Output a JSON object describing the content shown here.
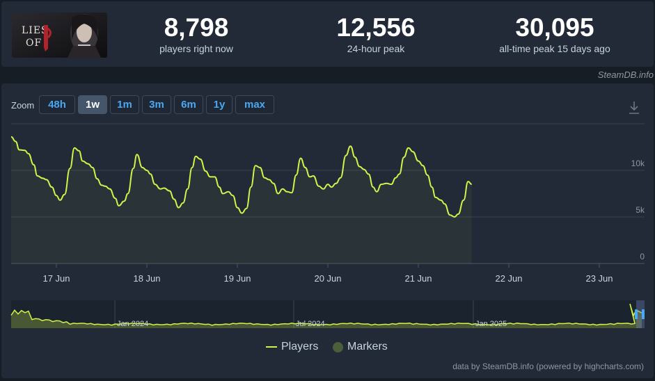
{
  "stats": [
    {
      "value": "8,798",
      "label": "players right now"
    },
    {
      "value": "12,556",
      "label": "24-hour peak"
    },
    {
      "value": "30,095",
      "label": "all-time peak 15 days ago"
    }
  ],
  "game": {
    "logo_text_1": "LIES",
    "logo_text_2": "OF"
  },
  "watermark": "SteamDB.info",
  "zoom": {
    "label": "Zoom",
    "options": [
      "48h",
      "1w",
      "1m",
      "3m",
      "6m",
      "1y",
      "max"
    ],
    "selected": "1w"
  },
  "legend": {
    "players": "Players",
    "markers": "Markers"
  },
  "credits": "data by SteamDB.info (powered by highcharts.com)",
  "colors": {
    "series": "#d4f34a",
    "background": "#171d25",
    "panel": "#212a36",
    "accent": "#4aa8f0"
  },
  "chart_data": {
    "type": "line",
    "series": [
      {
        "name": "Players",
        "x_day_offset": [],
        "values": []
      }
    ],
    "points": [
      [
        16.5,
        13600
      ],
      [
        16.55,
        13100
      ],
      [
        16.59,
        12200
      ],
      [
        16.65,
        12150
      ],
      [
        16.69,
        11800
      ],
      [
        16.75,
        10600
      ],
      [
        16.79,
        9400
      ],
      [
        16.85,
        9150
      ],
      [
        16.89,
        9000
      ],
      [
        16.95,
        8200
      ],
      [
        17.0,
        7300
      ],
      [
        17.04,
        6800
      ],
      [
        17.09,
        7400
      ],
      [
        17.15,
        10200
      ],
      [
        17.2,
        12400
      ],
      [
        17.25,
        12100
      ],
      [
        17.29,
        11000
      ],
      [
        17.35,
        10700
      ],
      [
        17.4,
        10300
      ],
      [
        17.45,
        9100
      ],
      [
        17.5,
        8400
      ],
      [
        17.54,
        8300
      ],
      [
        17.59,
        8000
      ],
      [
        17.65,
        7000
      ],
      [
        17.69,
        6200
      ],
      [
        17.75,
        6700
      ],
      [
        17.79,
        7500
      ],
      [
        17.85,
        10200
      ],
      [
        17.89,
        11700
      ],
      [
        17.95,
        10300
      ],
      [
        18.0,
        10000
      ],
      [
        18.04,
        9600
      ],
      [
        18.09,
        8500
      ],
      [
        18.15,
        8000
      ],
      [
        18.19,
        8100
      ],
      [
        18.25,
        7800
      ],
      [
        18.3,
        6900
      ],
      [
        18.35,
        6000
      ],
      [
        18.4,
        6500
      ],
      [
        18.45,
        8000
      ],
      [
        18.5,
        10300
      ],
      [
        18.54,
        11500
      ],
      [
        18.59,
        11200
      ],
      [
        18.65,
        9900
      ],
      [
        18.7,
        9300
      ],
      [
        18.75,
        9300
      ],
      [
        18.8,
        8200
      ],
      [
        18.84,
        7500
      ],
      [
        18.9,
        7700
      ],
      [
        18.95,
        7300
      ],
      [
        19.0,
        6000
      ],
      [
        19.05,
        5400
      ],
      [
        19.1,
        5900
      ],
      [
        19.15,
        8200
      ],
      [
        19.2,
        10500
      ],
      [
        19.25,
        10300
      ],
      [
        19.3,
        9200
      ],
      [
        19.35,
        9000
      ],
      [
        19.4,
        8600
      ],
      [
        19.45,
        7500
      ],
      [
        19.5,
        8000
      ],
      [
        19.55,
        7700
      ],
      [
        19.6,
        7600
      ],
      [
        19.65,
        9500
      ],
      [
        19.7,
        11300
      ],
      [
        19.75,
        10300
      ],
      [
        19.8,
        9300
      ],
      [
        19.84,
        9400
      ],
      [
        19.9,
        8300
      ],
      [
        19.95,
        8000
      ],
      [
        20.0,
        8500
      ],
      [
        20.04,
        8200
      ],
      [
        20.09,
        8600
      ],
      [
        20.14,
        9200
      ],
      [
        20.2,
        11600
      ],
      [
        20.25,
        12600
      ],
      [
        20.3,
        11400
      ],
      [
        20.35,
        10400
      ],
      [
        20.4,
        10100
      ],
      [
        20.45,
        9600
      ],
      [
        20.5,
        8200
      ],
      [
        20.54,
        7700
      ],
      [
        20.59,
        8500
      ],
      [
        20.65,
        8600
      ],
      [
        20.7,
        8500
      ],
      [
        20.75,
        9200
      ],
      [
        20.79,
        9600
      ],
      [
        20.84,
        11400
      ],
      [
        20.89,
        12400
      ],
      [
        20.94,
        12000
      ],
      [
        21.0,
        11000
      ],
      [
        21.05,
        10500
      ],
      [
        21.1,
        9500
      ],
      [
        21.15,
        8200
      ],
      [
        21.19,
        7100
      ],
      [
        21.25,
        6800
      ],
      [
        21.29,
        6400
      ],
      [
        21.35,
        5200
      ],
      [
        21.4,
        5000
      ],
      [
        21.44,
        5300
      ],
      [
        21.5,
        6800
      ],
      [
        21.55,
        8800
      ],
      [
        21.59,
        8500
      ]
    ],
    "x_ticks": [
      "17 Jun",
      "18 Jun",
      "19 Jun",
      "20 Jun",
      "21 Jun",
      "22 Jun",
      "23 Jun"
    ],
    "y_ticks": [
      "0",
      "5k",
      "10k"
    ],
    "ylim": [
      0,
      15000
    ],
    "grid": true,
    "legend_position": "bottom-center",
    "navigator": {
      "labels": [
        "Jan 2024",
        "Jul 2024",
        "Jan 2025"
      ]
    }
  }
}
